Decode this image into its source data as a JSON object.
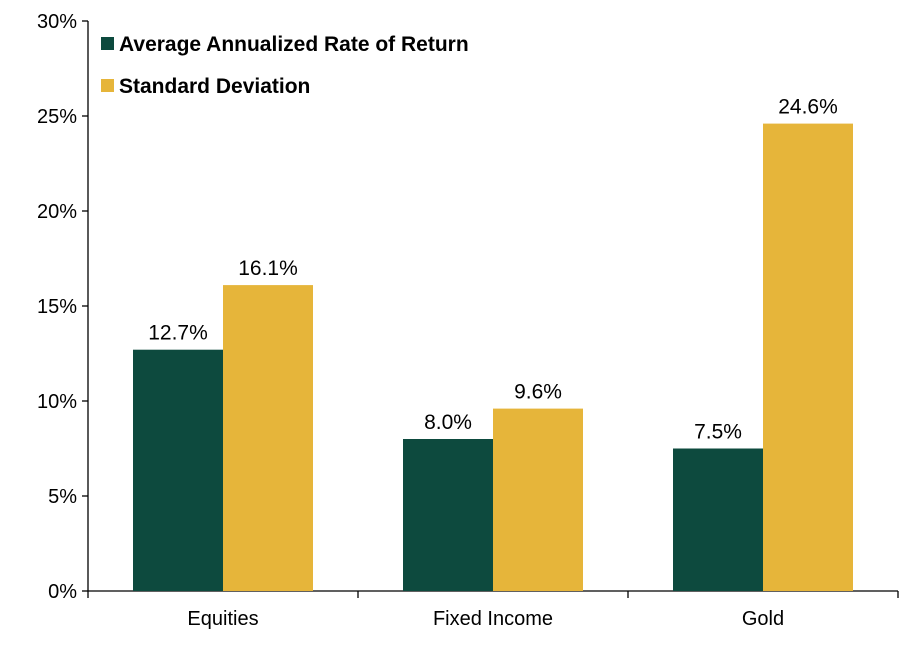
{
  "chart_data": {
    "type": "bar",
    "categories": [
      "Equities",
      "Fixed Income",
      "Gold"
    ],
    "series": [
      {
        "name": "Average Annualized Rate of Return",
        "values": [
          12.7,
          8.0,
          7.5
        ],
        "labels": [
          "12.7%",
          "8.0%",
          "7.5%"
        ],
        "color": "#0d4a3e"
      },
      {
        "name": "Standard Deviation",
        "values": [
          16.1,
          9.6,
          24.6
        ],
        "labels": [
          "16.1%",
          "9.6%",
          "24.6%"
        ],
        "color": "#e6b53a"
      }
    ],
    "y_ticks": [
      0,
      5,
      10,
      15,
      20,
      25,
      30
    ],
    "y_tick_labels": [
      "0%",
      "5%",
      "10%",
      "15%",
      "20%",
      "25%",
      "30%"
    ],
    "ylim": [
      0,
      30
    ],
    "grid": false,
    "legend_position": "top-left"
  }
}
